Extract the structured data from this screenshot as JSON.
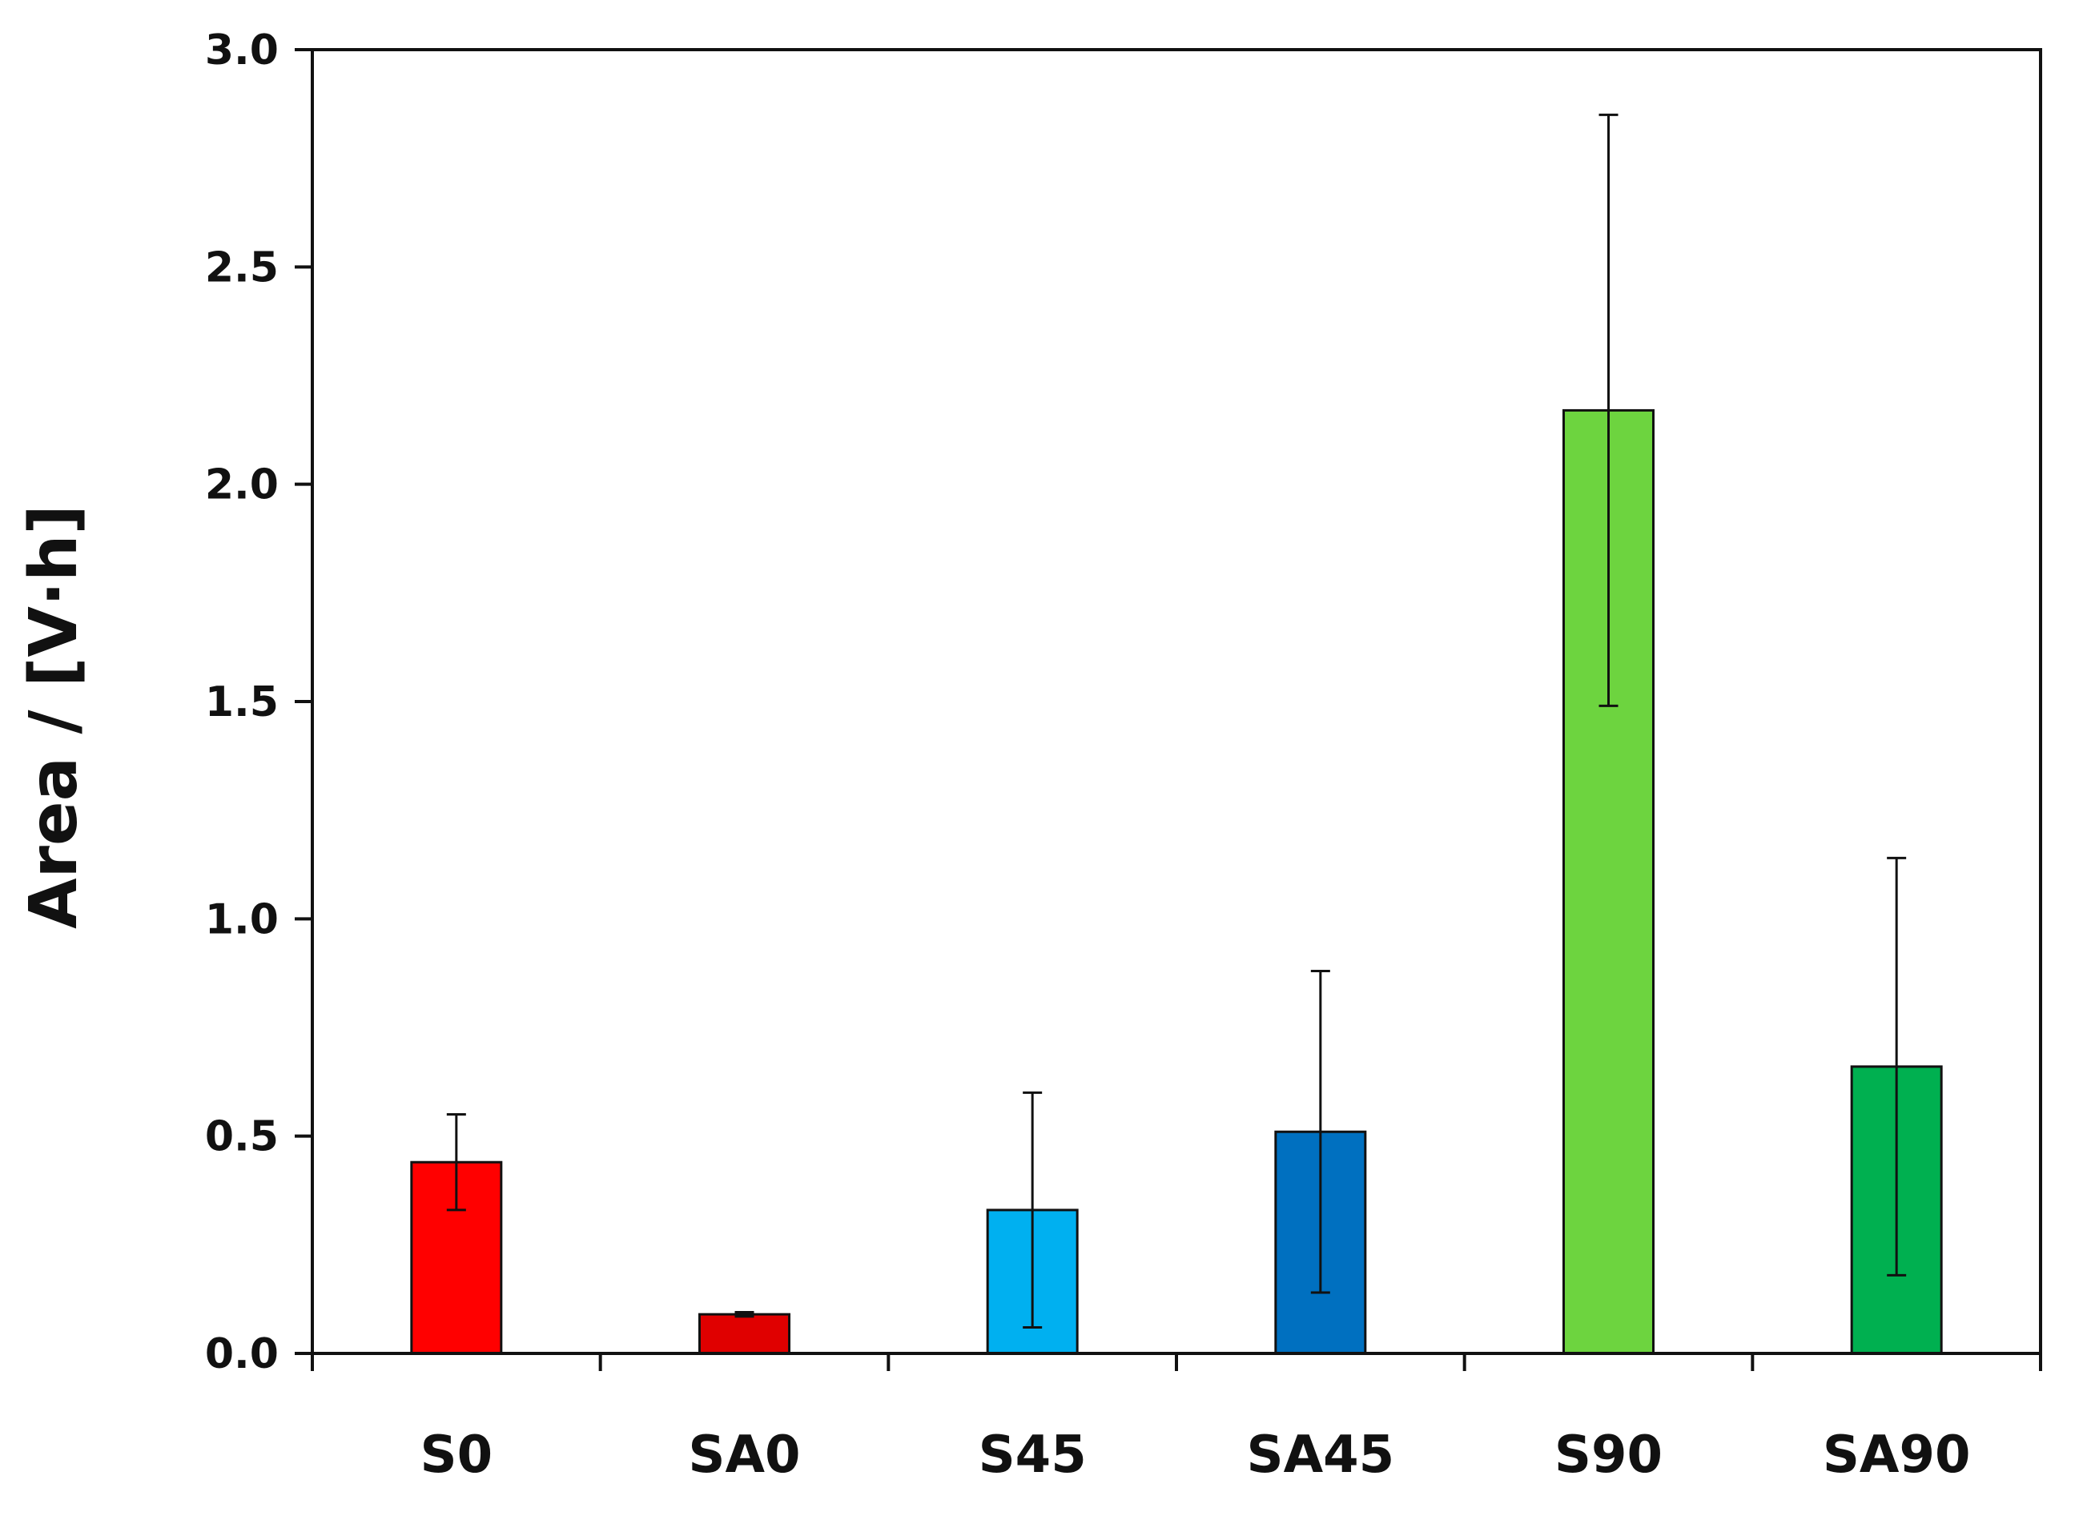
{
  "chart_data": {
    "type": "bar",
    "title": "",
    "xlabel": "",
    "ylabel": "Area / [V·h]",
    "ylim": [
      0,
      3.0
    ],
    "yticks": [
      "0.0",
      "0.5",
      "1.0",
      "1.5",
      "2.0",
      "2.5",
      "3.0"
    ],
    "categories": [
      "S0",
      "SA0",
      "S45",
      "SA45",
      "S90",
      "SA90"
    ],
    "values": [
      0.44,
      0.09,
      0.33,
      0.51,
      2.17,
      0.66
    ],
    "error": [
      0.11,
      0.005,
      0.27,
      0.37,
      0.68,
      0.48
    ],
    "colors": [
      "#ff0000",
      "#e00000",
      "#00b0f0",
      "#0070c0",
      "#6dd43f",
      "#00b050"
    ],
    "grid": false,
    "legend": "none"
  }
}
